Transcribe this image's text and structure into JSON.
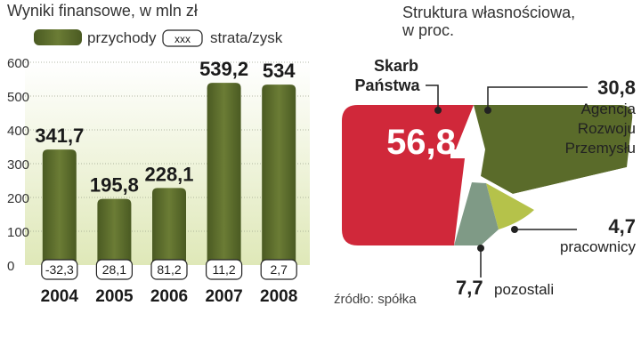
{
  "chart_data": [
    {
      "type": "bar",
      "title": "Wyniki finansowe, w mln zł",
      "legend": [
        {
          "label": "przychody",
          "color": "#5a6b2a"
        },
        {
          "label": "strata/zysk",
          "marker_text": "xxx"
        }
      ],
      "categories": [
        "2004",
        "2005",
        "2006",
        "2007",
        "2008"
      ],
      "series": [
        {
          "name": "przychody",
          "values": [
            341.7,
            195.8,
            228.1,
            539.2,
            534
          ],
          "labels": [
            "341,7",
            "195,8",
            "228,1",
            "539,2",
            "534"
          ]
        },
        {
          "name": "strata/zysk",
          "values": [
            -32.3,
            28.1,
            81.2,
            11.2,
            2.7
          ],
          "labels": [
            "-32,3",
            "28,1",
            "81,2",
            "11,2",
            "2,7"
          ]
        }
      ],
      "ylim": [
        0,
        600
      ],
      "yticks": [
        0,
        100,
        200,
        300,
        400,
        500,
        600
      ],
      "grid": true
    },
    {
      "type": "pie",
      "title": "Struktura własnościowa,",
      "subtitle": "w proc.",
      "slices": [
        {
          "name": "Skarb Państwa",
          "value": 56.8,
          "label": "56,8",
          "color": "#d0283a"
        },
        {
          "name": "Agencja Rozwoju Przemysłu",
          "value": 30.8,
          "label": "30,8",
          "color": "#5a6b2a"
        },
        {
          "name": "pracownicy",
          "value": 4.7,
          "label": "4,7",
          "color": "#b5c24a"
        },
        {
          "name": "pozostali",
          "value": 7.7,
          "label": "7,7",
          "color": "#7f9a86"
        }
      ],
      "annotations": {
        "skarb": "Skarb",
        "panstwa": "Państwa",
        "agencja_value": "30,8",
        "agencja": [
          "Agencja",
          "Rozwoju",
          "Przemysłu"
        ],
        "pracownicy_value": "4,7",
        "pracownicy": "pracownicy",
        "pozostali_value": "7,7",
        "pozostali": "pozostali",
        "source": "źródło: spółka"
      }
    }
  ],
  "colors": {
    "bar": "#5a6b2a",
    "bg_band": "#dfe8b8",
    "red": "#d0283a",
    "olive": "#5a6b2a",
    "lime": "#b5c24a",
    "grey_green": "#7f9a86"
  }
}
